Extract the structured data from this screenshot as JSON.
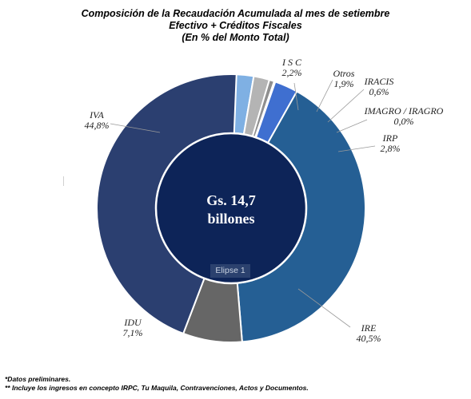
{
  "title": {
    "line1": "Composición de la Recaudación Acumulada al mes de setiembre",
    "line2": "Efectivo + Créditos Fiscales",
    "line3": "(En % del Monto Total)"
  },
  "center": {
    "line1": "Gs. 14,7",
    "line2": "billones"
  },
  "overlay": {
    "shape_tag": "Elipse 1"
  },
  "notes": {
    "n1": "*Datos preliminares.",
    "n2": "** Incluye los ingresos en concepto IRPC, Tu Maquila, Contravenciones, Actos y Documentos."
  },
  "chart_data": {
    "type": "donut",
    "unit": "%",
    "start_category": "I S C",
    "direction": "clockwise",
    "categories": [
      "I S C",
      "Otros",
      "IRACIS",
      "IMAGRO / IRAGRO",
      "IRP",
      "IRE",
      "IDU",
      "IVA"
    ],
    "values": [
      2.2,
      1.9,
      0.6,
      0.0,
      2.8,
      40.5,
      7.1,
      44.8
    ],
    "value_labels": [
      "2,2%",
      "1,9%",
      "0,6%",
      "0,0%",
      "2,8%",
      "40,5%",
      "7,1%",
      "44,8%"
    ],
    "colors": [
      "#7fb0e3",
      "#b4b4b4",
      "#8f8f8f",
      "#2e5f95",
      "#3f6fd0",
      "#255f94",
      "#666666",
      "#2b3f70"
    ]
  }
}
